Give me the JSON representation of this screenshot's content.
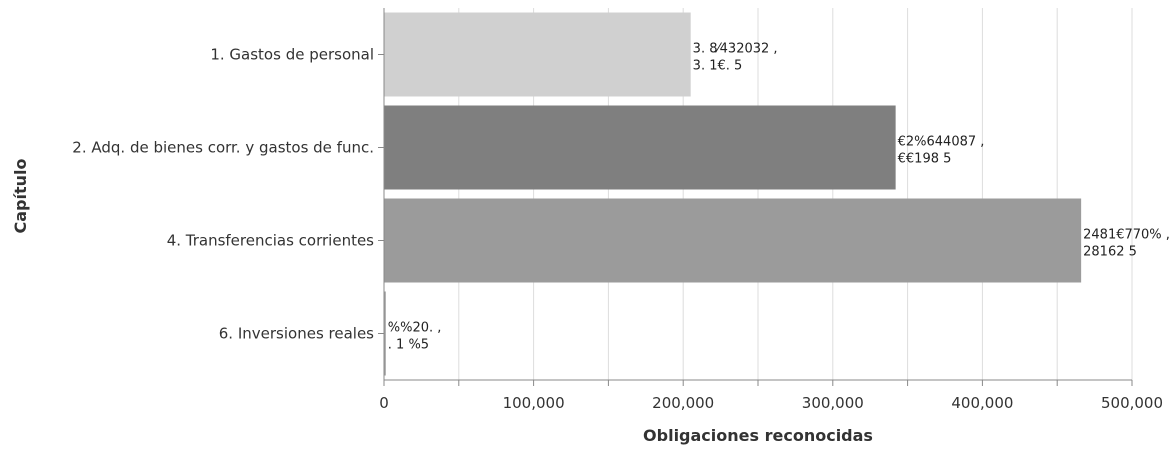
{
  "chart_data": {
    "type": "bar",
    "orientation": "horizontal",
    "xlabel": "Obligaciones reconocidas",
    "ylabel": "Capítulo",
    "xlim": [
      0,
      500000
    ],
    "x_ticks": [
      0,
      100000,
      200000,
      300000,
      400000,
      500000
    ],
    "x_tick_labels": [
      "0",
      "100,000",
      "200,000",
      "300,000",
      "400,000",
      "500,000"
    ],
    "grid": true,
    "categories": [
      "1. Gastos de personal",
      "2. Adq. de bienes corr. y gastos de func.",
      "4. Transferencias corrientes",
      "6. Inversiones reales"
    ],
    "values": [
      205000,
      342000,
      466000,
      1200
    ],
    "colors": [
      "#d0d0d0",
      "#7f7f7f",
      "#9b9b9b",
      "#a0a0a0"
    ],
    "data_labels": [
      [
        "3. 8⁄432032 ,",
        "3. 1€. 5"
      ],
      [
        "€2%644087 ,",
        "€€198 5"
      ],
      [
        "2481€770% ,",
        "28162 5"
      ],
      [
        "%%20. ,",
        ". 1 %5"
      ]
    ]
  }
}
